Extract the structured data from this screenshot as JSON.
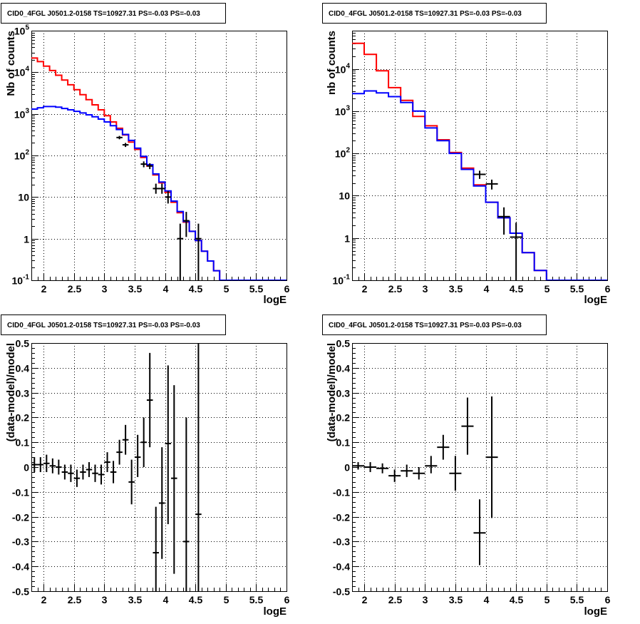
{
  "chart_data": [
    {
      "type": "histogram",
      "title": "CID0_4FGL J0501.2-0158 TS=10927.31 PS=-0.03 PS=-0.03",
      "xlabel": "logE",
      "ylabel": "Nb of counts",
      "xlim": [
        1.8,
        6
      ],
      "ylim": [
        0.1,
        100000
      ],
      "yscale": "log",
      "grid": true,
      "x_ticks": [
        "2",
        "2.5",
        "3",
        "3.5",
        "4",
        "4.5",
        "5",
        "5.5",
        "6"
      ],
      "y_ticks": [
        {
          "value": 0.1,
          "base": "10",
          "exp": "-1"
        },
        {
          "value": 1,
          "label": "1"
        },
        {
          "value": 10,
          "label": "10"
        },
        {
          "value": 100,
          "base": "10",
          "exp": "2"
        },
        {
          "value": 1000,
          "base": "10",
          "exp": "3"
        },
        {
          "value": 10000,
          "base": "10",
          "exp": "4"
        },
        {
          "value": 100000,
          "base": "10",
          "exp": "5"
        }
      ],
      "bin_edges": [
        1.8,
        1.9,
        2.0,
        2.1,
        2.2,
        2.3,
        2.4,
        2.5,
        2.6,
        2.7,
        2.8,
        2.9,
        3.0,
        3.1,
        3.2,
        3.3,
        3.4,
        3.5,
        3.6,
        3.7,
        3.8,
        3.9,
        4.0,
        4.1,
        4.2,
        4.3,
        4.4,
        4.5,
        4.6,
        4.7,
        4.8,
        4.9,
        5.0,
        5.1,
        5.2,
        5.3,
        5.4,
        5.5,
        5.6,
        5.7,
        5.8,
        5.9,
        6.0
      ],
      "series": [
        {
          "kind": "step",
          "color": "#ff0000",
          "values": [
            22000,
            18000,
            14000,
            11000,
            8500,
            6500,
            5000,
            3800,
            2900,
            2200,
            1650,
            1250,
            900,
            640,
            450,
            310,
            210,
            140,
            90,
            56,
            34,
            22,
            13,
            7.5,
            4.2,
            2.5,
            1.5,
            0.9,
            0.5,
            0.29,
            0.17,
            0.1,
            0.1,
            0.1,
            0.1,
            0.1,
            0.1,
            0.1,
            0.1,
            0.1,
            0.1,
            0.1
          ]
        },
        {
          "kind": "step",
          "color": "#0000ff",
          "values": [
            1300,
            1400,
            1500,
            1500,
            1450,
            1350,
            1250,
            1150,
            1050,
            950,
            850,
            750,
            640,
            520,
            420,
            320,
            230,
            150,
            95,
            60,
            36,
            23,
            14,
            8,
            4.5,
            2.6,
            1.5,
            0.9,
            0.5,
            0.29,
            0.17,
            0.1,
            0.1,
            0.1,
            0.1,
            0.1,
            0.1,
            0.1,
            0.1,
            0.1,
            0.1,
            0.1
          ]
        },
        {
          "kind": "points",
          "color": "#000000",
          "x": [
            3.25,
            3.35,
            3.65,
            3.75,
            3.85,
            3.95,
            4.05,
            4.25,
            4.35,
            4.55
          ],
          "xerr": 0.05,
          "y": [
            270,
            180,
            62,
            56,
            16,
            16,
            10,
            1,
            2.7,
            1
          ],
          "ylo": [
            245,
            160,
            52,
            47,
            12,
            12,
            7,
            0.1,
            1.1,
            0.1
          ],
          "yhi": [
            295,
            200,
            72,
            65,
            21,
            21,
            14,
            2.3,
            4.4,
            2.3
          ]
        }
      ]
    },
    {
      "type": "histogram",
      "title": "CID0_4FGL J0501.2-0158 TS=10927.31 PS=-0.03 PS=-0.03",
      "xlabel": "logE",
      "ylabel": "nb of counts",
      "xlim": [
        1.8,
        6
      ],
      "ylim": [
        0.1,
        80000
      ],
      "yscale": "log",
      "grid": true,
      "x_ticks": [
        "2",
        "2.5",
        "3",
        "3.5",
        "4",
        "4.5",
        "5",
        "5.5",
        "6"
      ],
      "y_ticks": [
        {
          "value": 0.1,
          "base": "10",
          "exp": "-1"
        },
        {
          "value": 1,
          "label": "1"
        },
        {
          "value": 10,
          "label": "10"
        },
        {
          "value": 100,
          "base": "10",
          "exp": "2"
        },
        {
          "value": 1000,
          "base": "10",
          "exp": "3"
        },
        {
          "value": 10000,
          "base": "10",
          "exp": "4"
        }
      ],
      "bin_edges": [
        1.8,
        2.0,
        2.2,
        2.4,
        2.6,
        2.8,
        3.0,
        3.2,
        3.4,
        3.6,
        3.8,
        4.0,
        4.2,
        4.4,
        4.6,
        4.8,
        5.0,
        5.2,
        5.4,
        5.6,
        5.8,
        6.0
      ],
      "series": [
        {
          "kind": "step",
          "color": "#ff0000",
          "values": [
            40000,
            22000,
            9000,
            3600,
            1800,
            750,
            450,
            210,
            105,
            45,
            18,
            7,
            3,
            1.3,
            0.45,
            0.17,
            0.1,
            0.1,
            0.1,
            0.1,
            0.1
          ]
        },
        {
          "kind": "step",
          "color": "#0000ff",
          "values": [
            2600,
            3000,
            2700,
            2200,
            1600,
            1000,
            400,
            200,
            100,
            42,
            17,
            7,
            3,
            1.3,
            0.45,
            0.17,
            0.1,
            0.1,
            0.1,
            0.1,
            0.1
          ]
        },
        {
          "kind": "points",
          "color": "#000000",
          "x": [
            3.9,
            4.1,
            4.3,
            4.5
          ],
          "xerr": 0.1,
          "y": [
            32,
            19,
            3.2,
            1.05
          ],
          "ylo": [
            25,
            14,
            1.2,
            0.1
          ],
          "yhi": [
            39,
            24,
            5.3,
            2.3
          ]
        }
      ]
    },
    {
      "type": "scatter",
      "title": "CID0_4FGL J0501.2-0158 TS=10927.31 PS=-0.03 PS=-0.03",
      "xlabel": "logE",
      "ylabel": "(data-model)/model",
      "xlim": [
        1.8,
        6
      ],
      "ylim": [
        -0.5,
        0.5
      ],
      "grid": true,
      "x_ticks": [
        "2",
        "2.5",
        "3",
        "3.5",
        "4",
        "4.5",
        "5",
        "5.5",
        "6"
      ],
      "y_ticks": [
        "0.5",
        "0.4",
        "0.3",
        "0.2",
        "0.1",
        "0",
        "-0.1",
        "-0.2",
        "-0.3",
        "-0.4",
        "-0.5"
      ],
      "series": [
        {
          "kind": "points",
          "color": "#000000",
          "xerr": 0.05,
          "x": [
            1.85,
            1.95,
            2.05,
            2.15,
            2.25,
            2.35,
            2.45,
            2.55,
            2.65,
            2.75,
            2.85,
            2.95,
            3.05,
            3.15,
            3.25,
            3.35,
            3.45,
            3.55,
            3.65,
            3.75,
            3.85,
            3.95,
            4.05,
            4.15,
            4.35,
            4.55
          ],
          "y": [
            0.01,
            0.01,
            0.015,
            0.005,
            0.0,
            -0.02,
            -0.025,
            -0.045,
            -0.02,
            -0.01,
            -0.025,
            -0.03,
            0.02,
            -0.02,
            0.06,
            0.11,
            -0.06,
            0.04,
            0.1,
            0.27,
            -0.345,
            -0.145,
            0.095,
            -0.045,
            -0.3,
            -0.19
          ],
          "ylo": [
            -0.02,
            -0.02,
            -0.02,
            -0.025,
            -0.03,
            -0.05,
            -0.06,
            -0.08,
            -0.05,
            -0.04,
            -0.06,
            -0.07,
            -0.02,
            -0.065,
            0.01,
            0.05,
            -0.15,
            -0.04,
            0.0,
            0.08,
            -0.5,
            -0.37,
            -0.23,
            -0.43,
            -0.5,
            -0.5
          ],
          "yhi": [
            0.04,
            0.04,
            0.05,
            0.035,
            0.03,
            0.01,
            0.01,
            -0.01,
            0.01,
            0.02,
            0.01,
            0.01,
            0.06,
            0.025,
            0.11,
            0.17,
            0.03,
            0.13,
            0.2,
            0.46,
            -0.16,
            0.08,
            0.41,
            0.33,
            0.2,
            0.5
          ]
        }
      ]
    },
    {
      "type": "scatter",
      "title": "CID0_4FGL J0501.2-0158 TS=10927.31 PS=-0.03 PS=-0.03",
      "xlabel": "logE",
      "ylabel": "(data-model)/model",
      "xlim": [
        1.8,
        6
      ],
      "ylim": [
        -0.5,
        0.5
      ],
      "grid": true,
      "x_ticks": [
        "2",
        "2.5",
        "3",
        "3.5",
        "4",
        "4.5",
        "5",
        "5.5",
        "6"
      ],
      "y_ticks": [
        "0.5",
        "0.4",
        "0.3",
        "0.2",
        "0.1",
        "0",
        "-0.1",
        "-0.2",
        "-0.3",
        "-0.4",
        "-0.5"
      ],
      "series": [
        {
          "kind": "points",
          "color": "#000000",
          "xerr": 0.1,
          "x": [
            1.9,
            2.1,
            2.3,
            2.5,
            2.7,
            2.9,
            3.1,
            3.3,
            3.5,
            3.7,
            3.9,
            4.1
          ],
          "y": [
            0.005,
            0.0,
            -0.005,
            -0.035,
            -0.015,
            -0.025,
            0.005,
            0.08,
            -0.025,
            0.165,
            -0.265,
            0.04
          ],
          "ylo": [
            -0.01,
            -0.02,
            -0.025,
            -0.06,
            -0.04,
            -0.05,
            -0.025,
            0.03,
            -0.095,
            0.05,
            -0.395,
            -0.205
          ],
          "yhi": [
            0.02,
            0.02,
            0.015,
            -0.01,
            0.01,
            0.0,
            0.045,
            0.13,
            0.045,
            0.28,
            -0.13,
            0.285
          ]
        }
      ]
    }
  ]
}
